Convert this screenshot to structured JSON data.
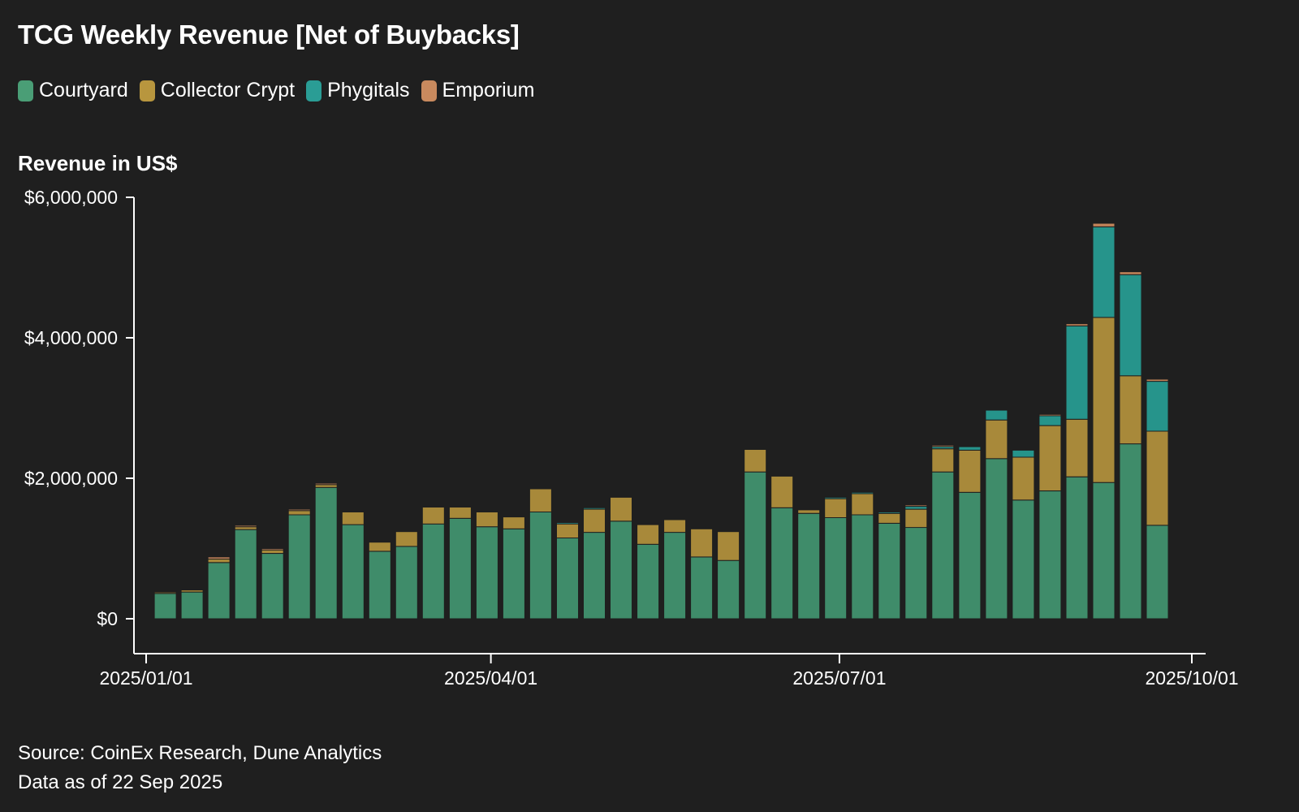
{
  "title": "TCG Weekly Revenue [Net of Buybacks]",
  "y_axis_title": "Revenue in US$",
  "legend": [
    {
      "label": "Courtyard",
      "color": "#4a9e76"
    },
    {
      "label": "Collector Crypt",
      "color": "#b8963e"
    },
    {
      "label": "Phygitals",
      "color": "#2a9d95"
    },
    {
      "label": "Emporium",
      "color": "#c98a5e"
    }
  ],
  "source": {
    "line1": "Source: CoinEx Research, Dune Analytics",
    "line2": "Data as of 22 Sep 2025"
  },
  "chart_data": {
    "type": "bar",
    "stacked": true,
    "title": "TCG Weekly Revenue [Net of Buybacks]",
    "ylabel": "Revenue in US$",
    "xlabel": "",
    "ylim": [
      0,
      6000000
    ],
    "yticks": [
      {
        "value": 0,
        "label": "$0"
      },
      {
        "value": 2000000,
        "label": "$2,000,000"
      },
      {
        "value": 4000000,
        "label": "$4,000,000"
      },
      {
        "value": 6000000,
        "label": "$6,000,000"
      }
    ],
    "xlim": [
      "2025-01-01",
      "2025-10-01"
    ],
    "xticks": [
      {
        "value": "2025-01-01",
        "label": "2025/01/01"
      },
      {
        "value": "2025-04-01",
        "label": "2025/04/01"
      },
      {
        "value": "2025-07-01",
        "label": "2025/07/01"
      },
      {
        "value": "2025-10-01",
        "label": "2025/10/01"
      }
    ],
    "categories": [
      "2025-01-06",
      "2025-01-13",
      "2025-01-20",
      "2025-01-27",
      "2025-02-03",
      "2025-02-10",
      "2025-02-17",
      "2025-02-24",
      "2025-03-03",
      "2025-03-10",
      "2025-03-17",
      "2025-03-24",
      "2025-03-31",
      "2025-04-07",
      "2025-04-14",
      "2025-04-21",
      "2025-04-28",
      "2025-05-05",
      "2025-05-12",
      "2025-05-19",
      "2025-05-26",
      "2025-06-02",
      "2025-06-09",
      "2025-06-16",
      "2025-06-23",
      "2025-06-30",
      "2025-07-07",
      "2025-07-14",
      "2025-07-21",
      "2025-07-28",
      "2025-08-04",
      "2025-08-11",
      "2025-08-18",
      "2025-08-25",
      "2025-09-01",
      "2025-09-08",
      "2025-09-15",
      "2025-09-22"
    ],
    "series": [
      {
        "name": "Courtyard",
        "color": "#3f8c6a",
        "values": [
          360000,
          380000,
          800000,
          1270000,
          930000,
          1480000,
          1870000,
          1340000,
          960000,
          1030000,
          1350000,
          1430000,
          1310000,
          1280000,
          1520000,
          1150000,
          1230000,
          1390000,
          1060000,
          1230000,
          880000,
          830000,
          2090000,
          1580000,
          1500000,
          1440000,
          1480000,
          1360000,
          1300000,
          2090000,
          1800000,
          2280000,
          1690000,
          1820000,
          2020000,
          1940000,
          2490000,
          1330000
        ]
      },
      {
        "name": "Collector Crypt",
        "color": "#a8893a",
        "values": [
          20000,
          30000,
          50000,
          40000,
          50000,
          60000,
          40000,
          180000,
          130000,
          210000,
          240000,
          160000,
          210000,
          170000,
          330000,
          200000,
          330000,
          340000,
          280000,
          180000,
          400000,
          410000,
          320000,
          450000,
          50000,
          270000,
          300000,
          140000,
          260000,
          330000,
          600000,
          550000,
          610000,
          930000,
          820000,
          2350000,
          970000,
          1340000
        ]
      },
      {
        "name": "Phygitals",
        "color": "#26948b",
        "values": [
          0,
          0,
          0,
          0,
          0,
          0,
          0,
          0,
          0,
          0,
          0,
          0,
          0,
          0,
          0,
          20000,
          20000,
          0,
          0,
          0,
          0,
          0,
          0,
          0,
          0,
          20000,
          20000,
          20000,
          40000,
          30000,
          50000,
          140000,
          100000,
          140000,
          1330000,
          1290000,
          1440000,
          710000
        ]
      },
      {
        "name": "Emporium",
        "color": "#c4845a",
        "values": [
          10000,
          10000,
          30000,
          20000,
          20000,
          20000,
          20000,
          0,
          0,
          0,
          0,
          0,
          0,
          0,
          0,
          0,
          0,
          0,
          0,
          0,
          0,
          0,
          0,
          0,
          0,
          0,
          0,
          0,
          20000,
          20000,
          0,
          0,
          0,
          20000,
          30000,
          50000,
          40000,
          30000
        ]
      }
    ],
    "grid": false,
    "legend_position": "top-left"
  }
}
